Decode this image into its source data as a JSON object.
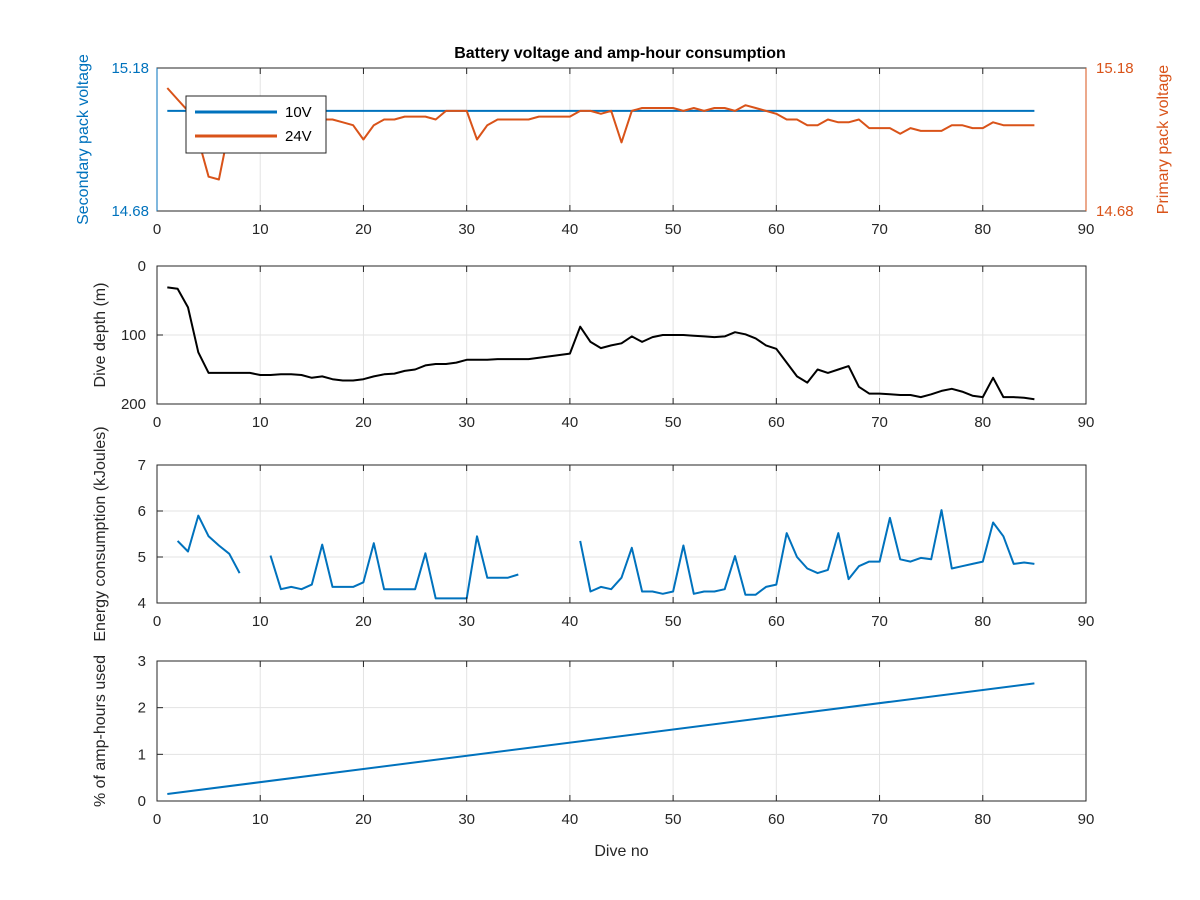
{
  "figure": {
    "title": "Battery voltage and amp-hour consumption"
  },
  "chart_data": [
    {
      "type": "line",
      "title": "Battery voltage and amp-hour consumption",
      "xlabel": "",
      "ylabel": "Secondary pack voltage",
      "ylabel_right": "Primary pack voltage",
      "xlim": [
        0,
        90
      ],
      "ylim": [
        14.68,
        15.18
      ],
      "ylim_right": [
        14.68,
        15.18
      ],
      "x_ticks": [
        "0",
        "10",
        "20",
        "30",
        "40",
        "50",
        "60",
        "70",
        "80",
        "90"
      ],
      "y_ticks_left": [
        "14.68",
        "15.18"
      ],
      "y_ticks_right": [
        "14.68",
        "15.18"
      ],
      "grid": true,
      "legend": "top-left",
      "colors": {
        "left_axis": "#0072BD",
        "right_axis": "#D95319"
      },
      "series": [
        {
          "name": "10V",
          "color": "#0072BD",
          "axis": "left",
          "x": [
            1,
            85
          ],
          "y": [
            15.03,
            15.03
          ]
        },
        {
          "name": "24V",
          "color": "#D95319",
          "axis": "right",
          "x": [
            1,
            2,
            3,
            4,
            5,
            6,
            7,
            8,
            9,
            10,
            11,
            12,
            13,
            14,
            15,
            16,
            17,
            18,
            19,
            20,
            21,
            22,
            23,
            24,
            25,
            26,
            27,
            28,
            29,
            30,
            31,
            32,
            33,
            34,
            35,
            36,
            37,
            38,
            39,
            40,
            41,
            42,
            43,
            44,
            45,
            46,
            47,
            48,
            49,
            50,
            51,
            52,
            53,
            54,
            55,
            56,
            57,
            58,
            59,
            60,
            61,
            62,
            63,
            64,
            65,
            66,
            67,
            68,
            69,
            70,
            71,
            72,
            73,
            74,
            75,
            76,
            77,
            78,
            79,
            80,
            81,
            82,
            83,
            84,
            85
          ],
          "y": [
            15.11,
            15.07,
            15.03,
            14.93,
            14.8,
            14.79,
            14.97,
            15.0,
            14.98,
            14.99,
            15.0,
            15.0,
            15.0,
            15.0,
            15.0,
            15.0,
            15.0,
            14.99,
            14.98,
            14.93,
            14.98,
            15.0,
            15.0,
            15.01,
            15.01,
            15.01,
            15.0,
            15.03,
            15.03,
            15.03,
            14.93,
            14.98,
            15.0,
            15.0,
            15.0,
            15.0,
            15.01,
            15.01,
            15.01,
            15.01,
            15.03,
            15.03,
            15.02,
            15.03,
            14.92,
            15.03,
            15.04,
            15.04,
            15.04,
            15.04,
            15.03,
            15.04,
            15.03,
            15.04,
            15.04,
            15.03,
            15.05,
            15.04,
            15.03,
            15.02,
            15.0,
            15.0,
            14.98,
            14.98,
            15.0,
            14.99,
            14.99,
            15.0,
            14.97,
            14.97,
            14.97,
            14.95,
            14.97,
            14.96,
            14.96,
            14.96,
            14.98,
            14.98,
            14.97,
            14.97,
            14.99,
            14.98,
            14.98,
            14.98,
            14.98
          ]
        }
      ]
    },
    {
      "type": "line",
      "xlabel": "",
      "ylabel": "Dive depth (m)",
      "xlim": [
        0,
        90
      ],
      "ylim": [
        0,
        200
      ],
      "y_reversed": true,
      "x_ticks": [
        "0",
        "10",
        "20",
        "30",
        "40",
        "50",
        "60",
        "70",
        "80",
        "90"
      ],
      "y_ticks": [
        "0",
        "100",
        "200"
      ],
      "grid": true,
      "series": [
        {
          "color": "#000000",
          "x": [
            1,
            2,
            3,
            4,
            5,
            6,
            7,
            8,
            9,
            10,
            11,
            12,
            13,
            14,
            15,
            16,
            17,
            18,
            19,
            20,
            21,
            22,
            23,
            24,
            25,
            26,
            27,
            28,
            29,
            30,
            31,
            32,
            33,
            34,
            35,
            36,
            37,
            38,
            39,
            40,
            41,
            42,
            43,
            44,
            45,
            46,
            47,
            48,
            49,
            50,
            51,
            52,
            53,
            54,
            55,
            56,
            57,
            58,
            59,
            60,
            61,
            62,
            63,
            64,
            65,
            66,
            67,
            68,
            69,
            70,
            71,
            72,
            73,
            74,
            75,
            76,
            77,
            78,
            79,
            80,
            81,
            82,
            83,
            84,
            85
          ],
          "y": [
            31,
            33,
            60,
            125,
            155,
            155,
            155,
            155,
            155,
            158,
            158,
            157,
            157,
            158,
            162,
            160,
            164,
            166,
            166,
            164,
            160,
            157,
            156,
            152,
            150,
            144,
            142,
            142,
            140,
            136,
            136,
            136,
            135,
            135,
            135,
            135,
            133,
            131,
            129,
            127,
            88,
            110,
            119,
            115,
            112,
            102,
            110,
            103,
            100,
            100,
            100,
            101,
            102,
            103,
            102,
            96,
            99,
            105,
            115,
            120,
            140,
            160,
            169,
            150,
            155,
            150,
            145,
            175,
            185,
            185,
            186,
            187,
            187,
            190,
            186,
            181,
            178,
            182,
            188,
            190,
            162,
            190,
            190,
            191,
            193
          ]
        }
      ]
    },
    {
      "type": "line",
      "xlabel": "",
      "ylabel": "Energy consumption (kJoules)",
      "xlim": [
        0,
        90
      ],
      "ylim": [
        4,
        7
      ],
      "x_ticks": [
        "0",
        "10",
        "20",
        "30",
        "40",
        "50",
        "60",
        "70",
        "80",
        "90"
      ],
      "y_ticks": [
        "4",
        "5",
        "6",
        "7"
      ],
      "grid": true,
      "series": [
        {
          "color": "#0072BD",
          "segments": [
            {
              "x": [
                2,
                3,
                4,
                5,
                6,
                7,
                8
              ],
              "y": [
                5.35,
                5.12,
                5.9,
                5.45,
                5.25,
                5.07,
                4.65
              ]
            },
            {
              "x": [
                11,
                12,
                13,
                14,
                15,
                16,
                17,
                18,
                19,
                20,
                21,
                22,
                23,
                24,
                25,
                26,
                27,
                28,
                29,
                30,
                31,
                32,
                33,
                34,
                35
              ],
              "y": [
                5.03,
                4.3,
                4.35,
                4.3,
                4.4,
                5.27,
                4.35,
                4.35,
                4.35,
                4.45,
                5.3,
                4.3,
                4.3,
                4.3,
                4.3,
                5.08,
                4.1,
                4.1,
                4.1,
                4.1,
                5.45,
                4.55,
                4.55,
                4.55,
                4.62
              ]
            },
            {
              "x": [
                41,
                42,
                43,
                44,
                45,
                46,
                47,
                48,
                49,
                50,
                51,
                52,
                53,
                54,
                55,
                56,
                57,
                58,
                59,
                60,
                61,
                62,
                63,
                64,
                65,
                66,
                67,
                68,
                69,
                70,
                71,
                72,
                73,
                74,
                75,
                76,
                77,
                78,
                79,
                80,
                81,
                82,
                83,
                84,
                85
              ],
              "y": [
                5.35,
                4.25,
                4.35,
                4.3,
                4.55,
                5.2,
                4.25,
                4.25,
                4.2,
                4.25,
                5.25,
                4.2,
                4.25,
                4.25,
                4.3,
                5.02,
                4.18,
                4.18,
                4.35,
                4.4,
                5.52,
                5.0,
                4.75,
                4.65,
                4.72,
                5.52,
                4.52,
                4.8,
                4.9,
                4.9,
                5.85,
                4.95,
                4.9,
                4.98,
                4.95,
                6.02,
                4.75,
                4.8,
                4.85,
                4.9,
                5.75,
                5.45,
                4.85,
                4.88,
                4.85
              ]
            }
          ]
        }
      ]
    },
    {
      "type": "line",
      "xlabel": "Dive no",
      "ylabel": "% of amp-hours used",
      "xlim": [
        0,
        90
      ],
      "ylim": [
        0,
        3
      ],
      "x_ticks": [
        "0",
        "10",
        "20",
        "30",
        "40",
        "50",
        "60",
        "70",
        "80",
        "90"
      ],
      "y_ticks": [
        "0",
        "1",
        "2",
        "3"
      ],
      "grid": true,
      "series": [
        {
          "color": "#0072BD",
          "x": [
            1,
            85
          ],
          "y": [
            0.15,
            2.52
          ]
        }
      ]
    }
  ]
}
